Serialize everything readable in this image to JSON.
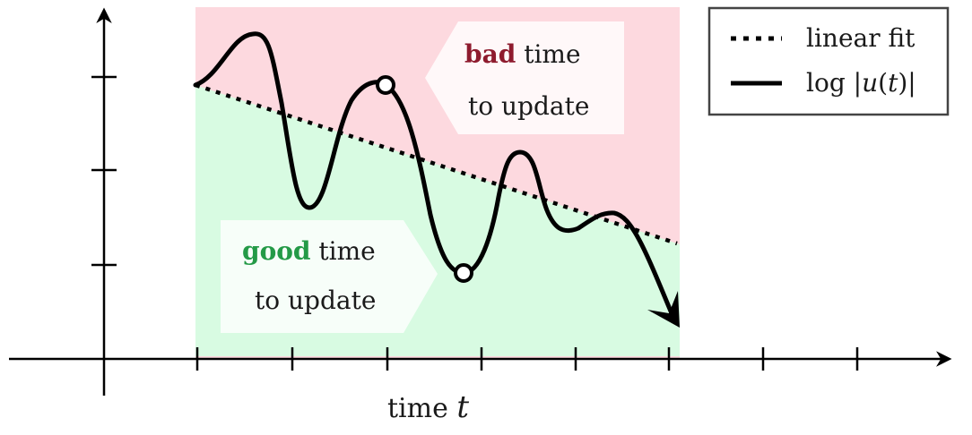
{
  "colors": {
    "bad_region": "#fdd9df",
    "good_region": "#d8fbe2",
    "bad_word": "#8e1b2e",
    "good_word": "#249a47",
    "callout": "#ffffff",
    "line": "#000000",
    "legend_border": "#444444"
  },
  "callouts": {
    "bad": {
      "word": "bad",
      "rest": " time",
      "line2": "to update"
    },
    "good": {
      "word": "good",
      "rest": " time",
      "line2": "to update"
    }
  },
  "axis": {
    "x_label_prefix": "time ",
    "x_label_var": "t"
  },
  "legend": {
    "items": [
      {
        "label": "linear fit",
        "style": "dotted"
      },
      {
        "label_prefix": "log |",
        "label_var": "u",
        "label_mid": "(",
        "label_var2": "t",
        "label_suffix": ")|",
        "style": "solid"
      }
    ]
  },
  "markers": [
    "circle-marker",
    "circle-marker"
  ]
}
